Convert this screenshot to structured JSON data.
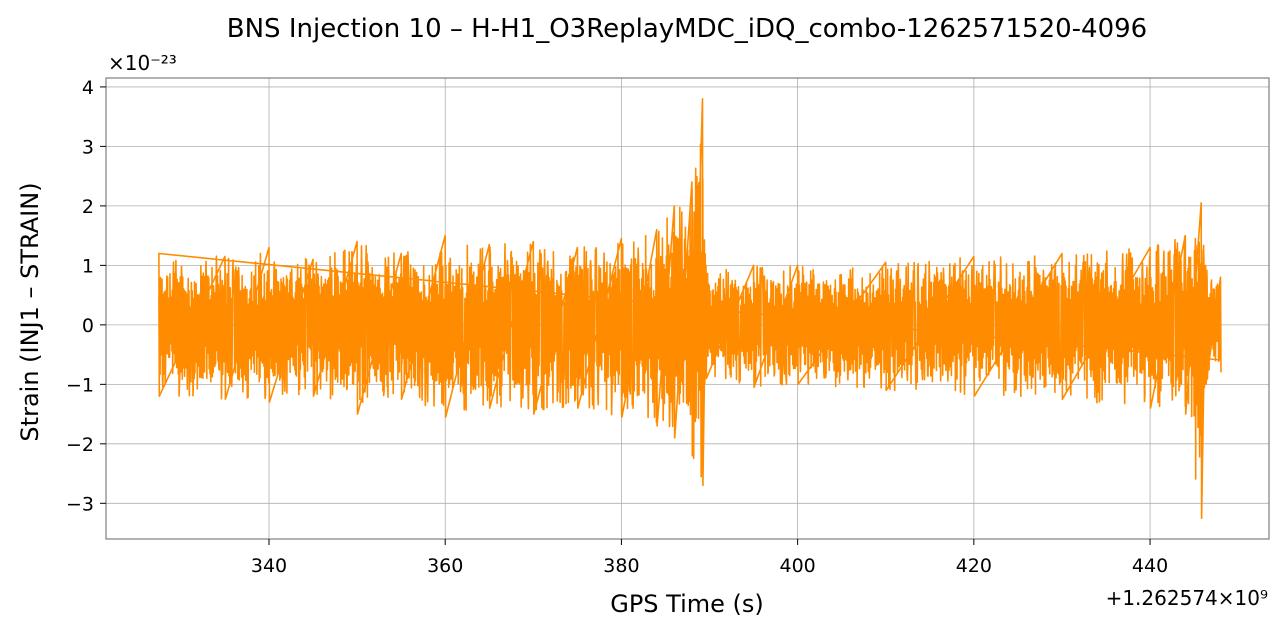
{
  "chart_data": {
    "type": "line",
    "title": "BNS Injection 10 – H-H1_O3ReplayMDC_iDQ_combo-1262571520-4096",
    "xlabel": "GPS Time (s)",
    "ylabel": "Strain (INJ1 – STRAIN)",
    "x_offset_text": "+1.262574×10⁹",
    "y_scale_text": "×10⁻²³",
    "xlim": [
      321.5,
      453.5
    ],
    "ylim": [
      -3.6,
      4.15
    ],
    "x_ticks": [
      340,
      360,
      380,
      400,
      420,
      440
    ],
    "x_tick_labels": [
      "340",
      "360",
      "380",
      "400",
      "420",
      "440"
    ],
    "y_ticks": [
      -3,
      -2,
      -1,
      0,
      1,
      2,
      3,
      4
    ],
    "y_tick_labels": [
      "−3",
      "−2",
      "−1",
      "0",
      "1",
      "2",
      "3",
      "4"
    ],
    "grid": true,
    "legend": "none",
    "series": [
      {
        "color": "#ff8c00",
        "x_range": [
          327.5,
          448.0
        ],
        "envelope": [
          {
            "x": 327.5,
            "max": 1.2,
            "min": -1.2
          },
          {
            "x": 335,
            "max": 1.15,
            "min": -1.25
          },
          {
            "x": 340,
            "max": 1.3,
            "min": -1.3
          },
          {
            "x": 345,
            "max": 1.1,
            "min": -1.2
          },
          {
            "x": 350,
            "max": 1.4,
            "min": -1.5
          },
          {
            "x": 355,
            "max": 1.2,
            "min": -1.25
          },
          {
            "x": 360,
            "max": 1.5,
            "min": -1.55
          },
          {
            "x": 365,
            "max": 1.35,
            "min": -1.4
          },
          {
            "x": 370,
            "max": 1.4,
            "min": -1.5
          },
          {
            "x": 375,
            "max": 1.3,
            "min": -1.4
          },
          {
            "x": 380,
            "max": 1.45,
            "min": -1.55
          },
          {
            "x": 384,
            "max": 1.6,
            "min": -1.7
          },
          {
            "x": 386,
            "max": 2.0,
            "min": -1.9
          },
          {
            "x": 388,
            "max": 2.4,
            "min": -2.2
          },
          {
            "x": 389.2,
            "max": 3.8,
            "min": -2.7
          },
          {
            "x": 389.6,
            "max": 1.0,
            "min": -0.9
          },
          {
            "x": 395,
            "max": 1.0,
            "min": -1.05
          },
          {
            "x": 400,
            "max": 1.0,
            "min": -1.0
          },
          {
            "x": 410,
            "max": 1.05,
            "min": -1.1
          },
          {
            "x": 420,
            "max": 1.15,
            "min": -1.2
          },
          {
            "x": 430,
            "max": 1.2,
            "min": -1.25
          },
          {
            "x": 440,
            "max": 1.3,
            "min": -1.4
          },
          {
            "x": 444,
            "max": 1.5,
            "min": -1.5
          },
          {
            "x": 445.8,
            "max": 2.05,
            "min": -3.25
          },
          {
            "x": 446.3,
            "max": 1.0,
            "min": -1.0
          },
          {
            "x": 448.0,
            "max": 0.8,
            "min": -0.8
          }
        ]
      }
    ]
  }
}
